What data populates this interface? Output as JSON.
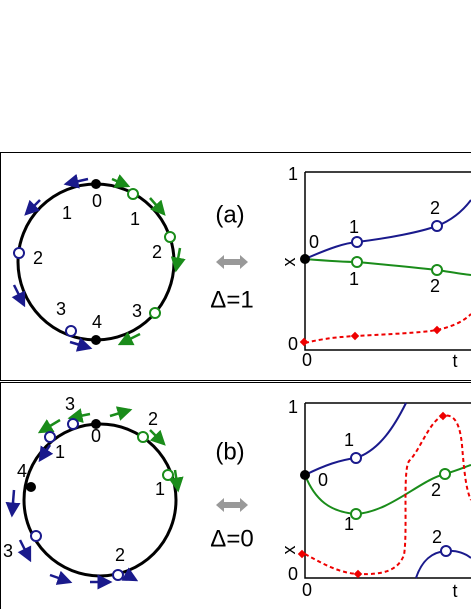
{
  "panels": [
    {
      "label": "(a)",
      "delta": "Δ=1",
      "circle_labels": [
        "0",
        "1",
        "2",
        "3",
        "4",
        "1",
        "2",
        "3"
      ],
      "plot": {
        "y_top": "1",
        "y_bottom": "0",
        "x_left": "0",
        "x_right": "t",
        "y_axis": "x",
        "point_labels": [
          "0",
          "1",
          "2",
          "1",
          "2"
        ]
      }
    },
    {
      "label": "(b)",
      "delta": "Δ=0",
      "circle_labels": [
        "0",
        "3",
        "2",
        "4",
        "1",
        "1",
        "3",
        "2"
      ],
      "plot": {
        "y_top": "1",
        "y_bottom": "0",
        "x_left": "0",
        "x_right": "t",
        "y_axis": "x",
        "point_labels": [
          "0",
          "1",
          "1",
          "2",
          "2"
        ]
      }
    }
  ]
}
